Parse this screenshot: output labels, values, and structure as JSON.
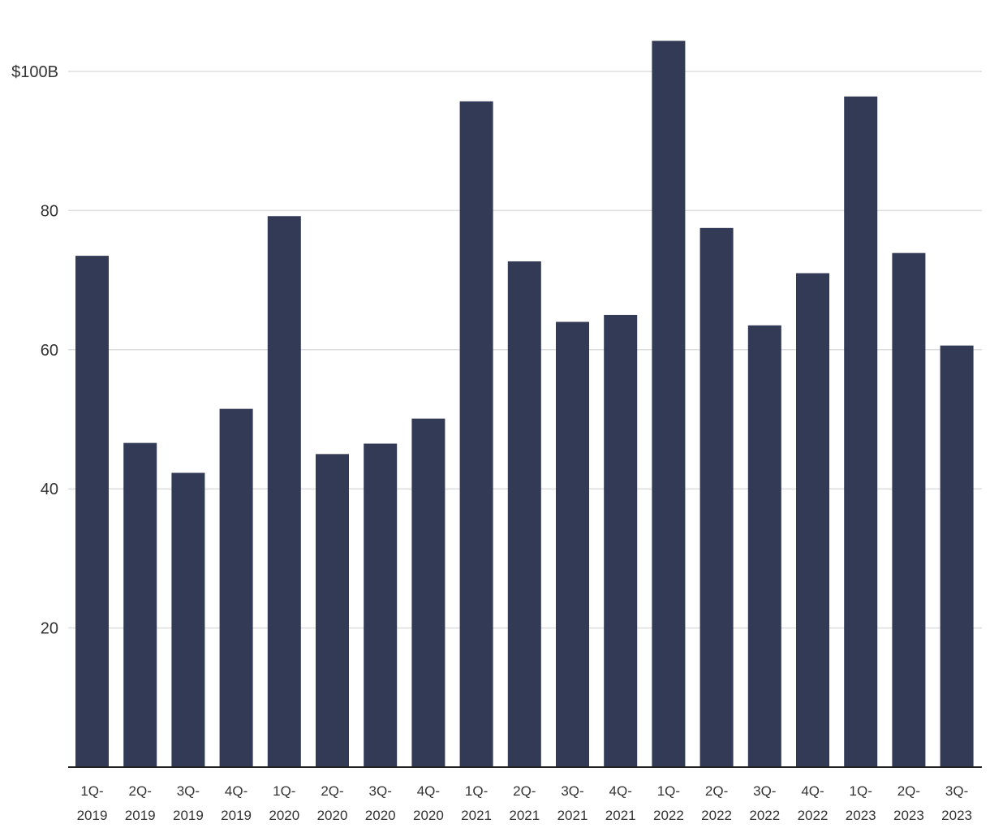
{
  "chart_data": {
    "type": "bar",
    "title": "",
    "xlabel": "",
    "ylabel": "",
    "categories": [
      "1Q-2019",
      "2Q-2019",
      "3Q-2019",
      "4Q-2019",
      "1Q-2020",
      "2Q-2020",
      "3Q-2020",
      "4Q-2020",
      "1Q-2021",
      "2Q-2021",
      "3Q-2021",
      "4Q-2021",
      "1Q-2022",
      "2Q-2022",
      "3Q-2022",
      "4Q-2022",
      "1Q-2023",
      "2Q-2023",
      "3Q-2023"
    ],
    "category_labels": [
      [
        "1Q-",
        "2019"
      ],
      [
        "2Q-",
        "2019"
      ],
      [
        "3Q-",
        "2019"
      ],
      [
        "4Q-",
        "2019"
      ],
      [
        "1Q-",
        "2020"
      ],
      [
        "2Q-",
        "2020"
      ],
      [
        "3Q-",
        "2020"
      ],
      [
        "4Q-",
        "2020"
      ],
      [
        "1Q-",
        "2021"
      ],
      [
        "2Q-",
        "2021"
      ],
      [
        "3Q-",
        "2021"
      ],
      [
        "4Q-",
        "2021"
      ],
      [
        "1Q-",
        "2022"
      ],
      [
        "2Q-",
        "2022"
      ],
      [
        "3Q-",
        "2022"
      ],
      [
        "4Q-",
        "2022"
      ],
      [
        "1Q-",
        "2023"
      ],
      [
        "2Q-",
        "2023"
      ],
      [
        "3Q-",
        "2023"
      ]
    ],
    "values": [
      73.5,
      46.6,
      42.3,
      51.5,
      79.2,
      45.0,
      46.5,
      50.1,
      95.7,
      72.7,
      64.0,
      65.0,
      104.4,
      77.5,
      63.5,
      71.0,
      96.4,
      73.9,
      60.6
    ],
    "unit": "billion USD",
    "ylim": [
      0,
      100
    ],
    "y_ticks": [
      20,
      40,
      60,
      80,
      100
    ],
    "y_tick_labels": [
      "20",
      "40",
      "60",
      "80",
      "$100B"
    ],
    "grid": true,
    "legend": "none",
    "bar_color": "#333a55"
  }
}
